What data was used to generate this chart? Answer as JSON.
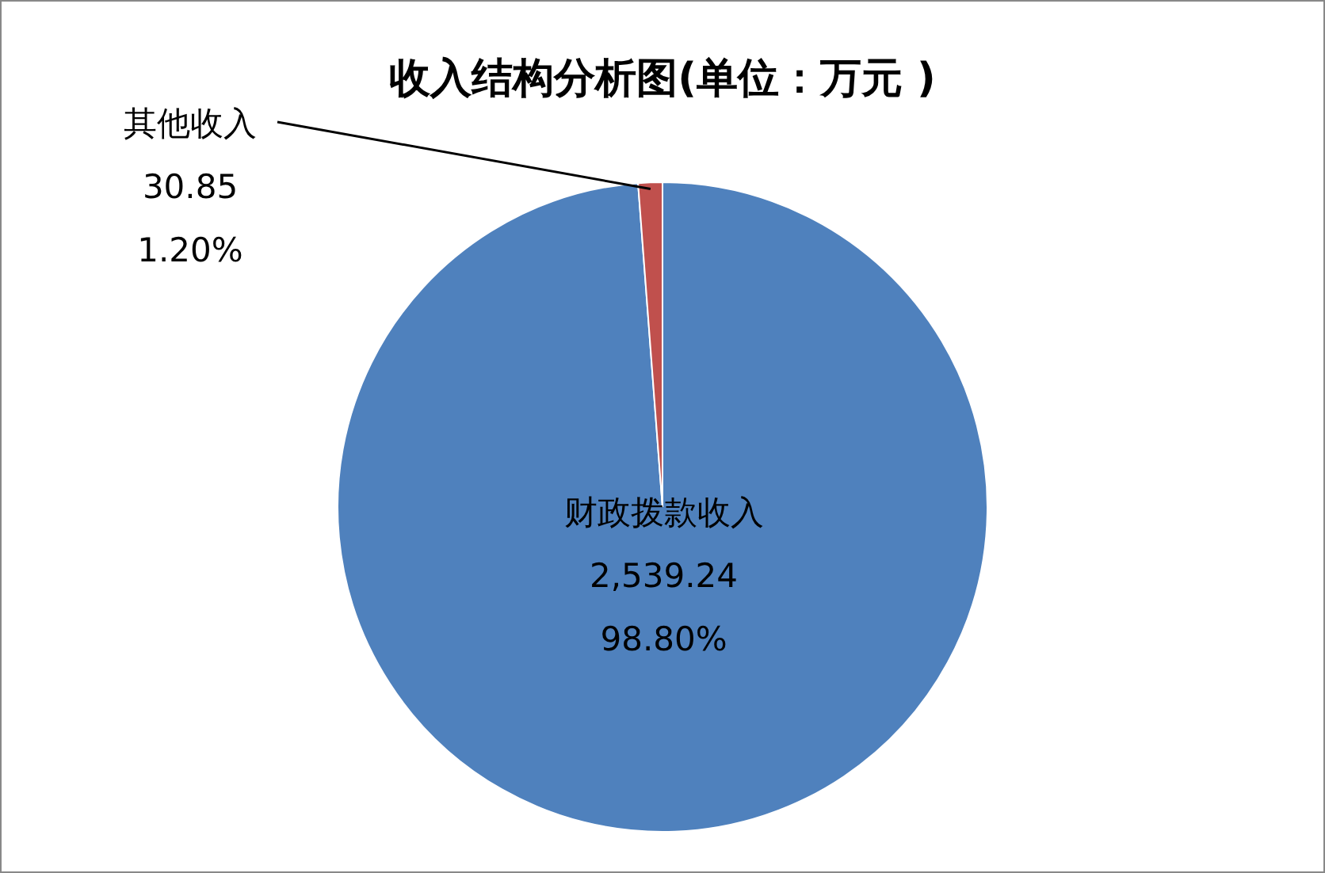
{
  "chart_data": {
    "type": "pie",
    "title": "收入结构分析图(单位：万元 )",
    "categories": [
      "财政拨款收入",
      "其他收入"
    ],
    "values": [
      2539.24,
      30.85
    ],
    "colors": [
      "#4f81bd",
      "#c0504d"
    ],
    "value_labels": [
      "2,539.24\n98.80%",
      "30.85\n1.20%"
    ]
  }
}
